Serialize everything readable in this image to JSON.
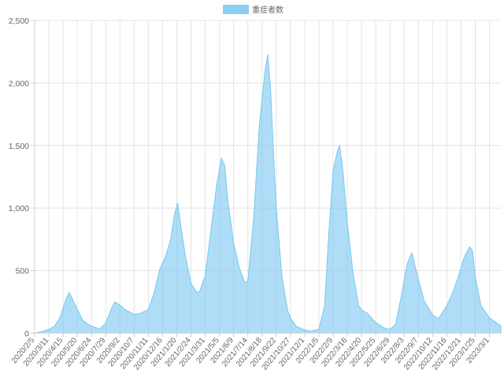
{
  "chart_data": {
    "type": "area",
    "title": "",
    "xlabel": "",
    "ylabel": "",
    "ylim": [
      0,
      2500
    ],
    "y_ticks": [
      "0",
      "500",
      "1,000",
      "1,500",
      "2,000",
      "2,500"
    ],
    "y_tick_values": [
      0,
      500,
      1000,
      1500,
      2000,
      2500
    ],
    "grid": true,
    "legend_placement": "top-center",
    "x_ticks": [
      "2020/2/5",
      "2020/3/11",
      "2020/4/15",
      "2020/5/20",
      "2020/6/24",
      "2020/7/29",
      "2020/9/2",
      "2020/10/7",
      "2020/11/11",
      "2020/12/16",
      "2021/1/20",
      "2021/2/24",
      "2021/3/31",
      "2021/5/5",
      "2021/6/9",
      "2021/7/14",
      "2021/8/18",
      "2021/9/22",
      "2021/10/27",
      "2021/12/1",
      "2022/1/5",
      "2022/2/9",
      "2022/3/16",
      "2022/4/20",
      "2022/5/25",
      "2022/6/29",
      "2022/8/3",
      "2022/9/7",
      "2022/10/12",
      "2022/11/16",
      "2022/12/21",
      "2023/1/25",
      "2023/3/1"
    ],
    "x_range": [
      "2020/2/5",
      "2023/3/29"
    ],
    "series": [
      {
        "name": "重症者数",
        "color": "#79c7f1",
        "points": [
          [
            "2020/2/5",
            0
          ],
          [
            "2020/2/26",
            15
          ],
          [
            "2020/3/11",
            30
          ],
          [
            "2020/3/25",
            55
          ],
          [
            "2020/4/8",
            130
          ],
          [
            "2020/4/22",
            270
          ],
          [
            "2020/4/30",
            325
          ],
          [
            "2020/5/7",
            280
          ],
          [
            "2020/5/20",
            190
          ],
          [
            "2020/6/3",
            100
          ],
          [
            "2020/6/24",
            55
          ],
          [
            "2020/7/15",
            35
          ],
          [
            "2020/7/29",
            80
          ],
          [
            "2020/8/10",
            180
          ],
          [
            "2020/8/20",
            250
          ],
          [
            "2020/9/2",
            225
          ],
          [
            "2020/9/16",
            185
          ],
          [
            "2020/10/7",
            150
          ],
          [
            "2020/10/21",
            155
          ],
          [
            "2020/11/11",
            190
          ],
          [
            "2020/11/25",
            320
          ],
          [
            "2020/12/9",
            510
          ],
          [
            "2020/12/23",
            610
          ],
          [
            "2021/1/5",
            750
          ],
          [
            "2021/1/15",
            960
          ],
          [
            "2021/1/22",
            1040
          ],
          [
            "2021/1/29",
            880
          ],
          [
            "2021/2/10",
            620
          ],
          [
            "2021/2/24",
            400
          ],
          [
            "2021/3/10",
            325
          ],
          [
            "2021/3/17",
            330
          ],
          [
            "2021/3/31",
            460
          ],
          [
            "2021/4/14",
            820
          ],
          [
            "2021/4/28",
            1180
          ],
          [
            "2021/5/10",
            1400
          ],
          [
            "2021/5/18",
            1340
          ],
          [
            "2021/5/26",
            1050
          ],
          [
            "2021/6/9",
            720
          ],
          [
            "2021/6/23",
            520
          ],
          [
            "2021/7/7",
            400
          ],
          [
            "2021/7/14",
            420
          ],
          [
            "2021/7/28",
            900
          ],
          [
            "2021/8/11",
            1650
          ],
          [
            "2021/8/25",
            2090
          ],
          [
            "2021/9/1",
            2230
          ],
          [
            "2021/9/8",
            1950
          ],
          [
            "2021/9/15",
            1450
          ],
          [
            "2021/9/22",
            1000
          ],
          [
            "2021/10/6",
            450
          ],
          [
            "2021/10/20",
            180
          ],
          [
            "2021/10/27",
            120
          ],
          [
            "2021/11/10",
            55
          ],
          [
            "2021/12/1",
            25
          ],
          [
            "2021/12/15",
            15
          ],
          [
            "2022/1/5",
            30
          ],
          [
            "2022/1/19",
            220
          ],
          [
            "2022/1/29",
            780
          ],
          [
            "2022/2/9",
            1300
          ],
          [
            "2022/2/20",
            1460
          ],
          [
            "2022/2/25",
            1500
          ],
          [
            "2022/3/5",
            1300
          ],
          [
            "2022/3/16",
            880
          ],
          [
            "2022/3/30",
            480
          ],
          [
            "2022/4/13",
            220
          ],
          [
            "2022/4/20",
            185
          ],
          [
            "2022/5/4",
            160
          ],
          [
            "2022/5/25",
            85
          ],
          [
            "2022/6/15",
            40
          ],
          [
            "2022/6/29",
            30
          ],
          [
            "2022/7/13",
            70
          ],
          [
            "2022/7/27",
            300
          ],
          [
            "2022/8/10",
            550
          ],
          [
            "2022/8/22",
            640
          ],
          [
            "2022/9/7",
            430
          ],
          [
            "2022/9/21",
            260
          ],
          [
            "2022/10/12",
            145
          ],
          [
            "2022/10/26",
            115
          ],
          [
            "2022/11/16",
            220
          ],
          [
            "2022/11/30",
            320
          ],
          [
            "2022/12/14",
            450
          ],
          [
            "2022/12/28",
            600
          ],
          [
            "2023/1/11",
            690
          ],
          [
            "2023/1/18",
            660
          ],
          [
            "2023/1/25",
            450
          ],
          [
            "2023/2/8",
            220
          ],
          [
            "2023/3/1",
            120
          ],
          [
            "2023/3/15",
            90
          ],
          [
            "2023/3/29",
            60
          ]
        ]
      }
    ]
  }
}
